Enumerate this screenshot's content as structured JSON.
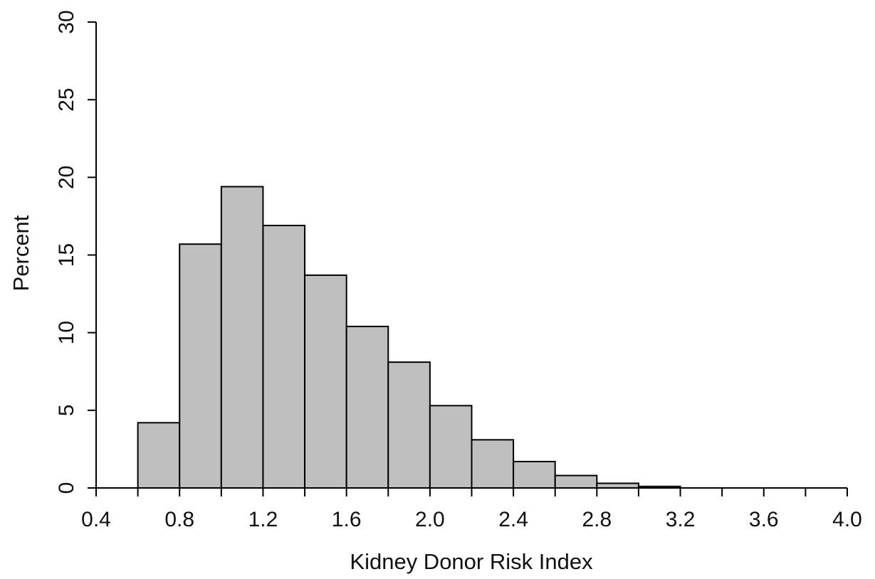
{
  "chart_data": {
    "type": "bar",
    "subtype": "histogram",
    "xlabel": "Kidney Donor Risk Index",
    "ylabel": "Percent",
    "xlim": [
      0.4,
      4.0
    ],
    "ylim": [
      0,
      30
    ],
    "x_ticks": [
      0.4,
      0.6,
      0.8,
      1.0,
      1.2,
      1.4,
      1.6,
      1.8,
      2.0,
      2.2,
      2.4,
      2.6,
      2.8,
      3.0,
      3.2,
      3.4,
      3.6,
      3.8,
      4.0
    ],
    "x_tick_labels": [
      {
        "value": 0.4,
        "label": "0.4"
      },
      {
        "value": 0.8,
        "label": "0.8"
      },
      {
        "value": 1.2,
        "label": "1.2"
      },
      {
        "value": 1.6,
        "label": "1.6"
      },
      {
        "value": 2.0,
        "label": "2.0"
      },
      {
        "value": 2.4,
        "label": "2.4"
      },
      {
        "value": 2.8,
        "label": "2.8"
      },
      {
        "value": 3.2,
        "label": "3.2"
      },
      {
        "value": 3.6,
        "label": "3.6"
      },
      {
        "value": 4.0,
        "label": "4.0"
      }
    ],
    "y_ticks": [
      {
        "value": 0,
        "label": "0"
      },
      {
        "value": 5,
        "label": "5"
      },
      {
        "value": 10,
        "label": "10"
      },
      {
        "value": 15,
        "label": "15"
      },
      {
        "value": 20,
        "label": "20"
      },
      {
        "value": 25,
        "label": "25"
      },
      {
        "value": 30,
        "label": "30"
      }
    ],
    "bins": [
      {
        "start": 0.6,
        "end": 0.8,
        "value": 4.2
      },
      {
        "start": 0.8,
        "end": 1.0,
        "value": 15.7
      },
      {
        "start": 1.0,
        "end": 1.2,
        "value": 19.4
      },
      {
        "start": 1.2,
        "end": 1.4,
        "value": 16.9
      },
      {
        "start": 1.4,
        "end": 1.6,
        "value": 13.7
      },
      {
        "start": 1.6,
        "end": 1.8,
        "value": 10.4
      },
      {
        "start": 1.8,
        "end": 2.0,
        "value": 8.1
      },
      {
        "start": 2.0,
        "end": 2.2,
        "value": 5.3
      },
      {
        "start": 2.2,
        "end": 2.4,
        "value": 3.1
      },
      {
        "start": 2.4,
        "end": 2.6,
        "value": 1.7
      },
      {
        "start": 2.6,
        "end": 2.8,
        "value": 0.8
      },
      {
        "start": 2.8,
        "end": 3.0,
        "value": 0.3
      },
      {
        "start": 3.0,
        "end": 3.2,
        "value": 0.1
      }
    ],
    "colors": {
      "bar_fill": "#bfbfbf",
      "bar_stroke": "#000000",
      "axis": "#000000"
    },
    "grid": false,
    "legend": "none"
  }
}
